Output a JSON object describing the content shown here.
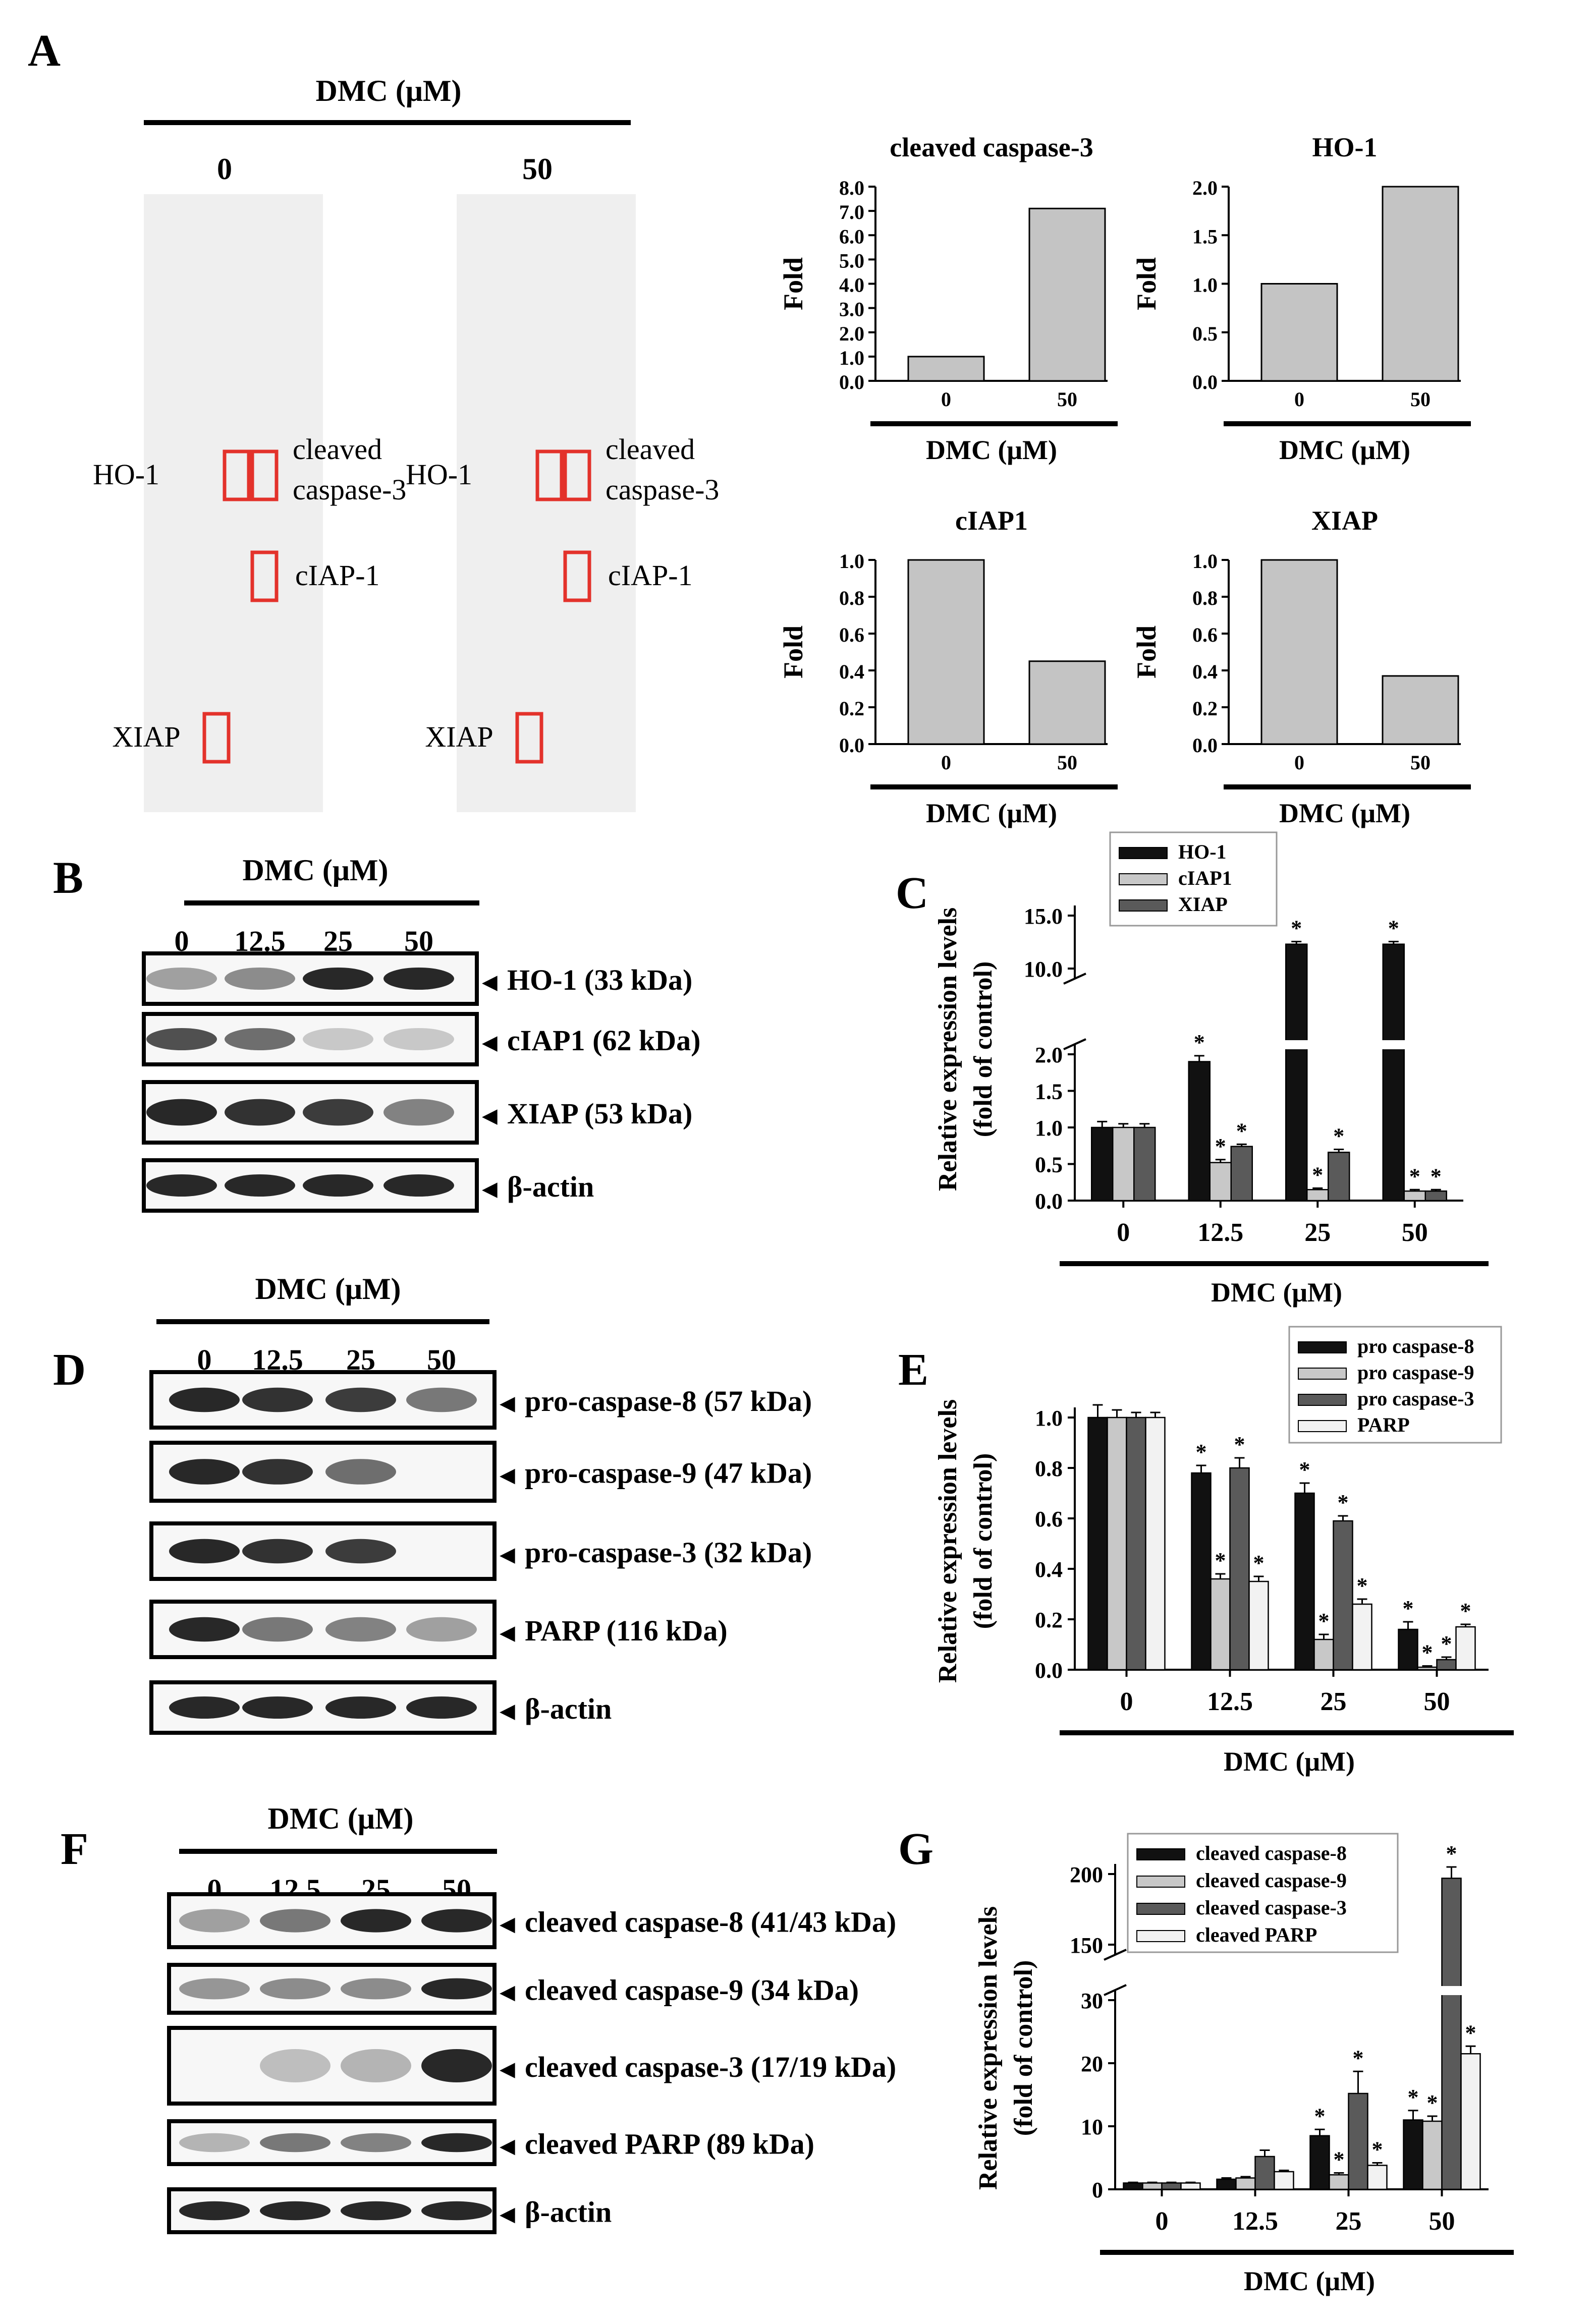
{
  "panel_labels": {
    "A": "A",
    "B": "B",
    "C": "C",
    "D": "D",
    "E": "E",
    "F": "F",
    "G": "G"
  },
  "treatment_header": "DMC (μM)",
  "panel_a": {
    "array_doses": [
      "0",
      "50"
    ],
    "array_labels": {
      "ho1": "HO-1",
      "cleaved_line1": "cleaved",
      "cleaved_line2": "caspase-3",
      "ciap": "cIAP-1",
      "xiap": "XIAP"
    }
  },
  "panel_b": {
    "doses": [
      "0",
      "12.5",
      "25",
      "50"
    ],
    "bands": [
      "HO-1 (33 kDa)",
      "cIAP1 (62 kDa)",
      "XIAP (53 kDa)",
      "β-actin"
    ]
  },
  "panel_d": {
    "doses": [
      "0",
      "12.5",
      "25",
      "50"
    ],
    "bands": [
      "pro-caspase-8 (57 kDa)",
      "pro-caspase-9 (47 kDa)",
      "pro-caspase-3 (32 kDa)",
      "PARP (116 kDa)",
      "β-actin"
    ]
  },
  "panel_f": {
    "doses": [
      "0",
      "12.5",
      "25",
      "50"
    ],
    "bands": [
      "cleaved caspase-8 (41/43 kDa)",
      "cleaved caspase-9 (34 kDa)",
      "cleaved caspase-3 (17/19 kDa)",
      "cleaved PARP (89 kDa)",
      "β-actin"
    ]
  },
  "colors": {
    "black_bar": "#111111",
    "light_gray_bar": "#c8c8c8",
    "dark_gray_bar": "#5a5a5a",
    "white_bar": "#f2f2f2",
    "array_bar": "#c4c4c4",
    "highlight_box": "#e3322b"
  },
  "chart_data": [
    {
      "id": "A1",
      "type": "bar",
      "title": "cleaved caspase-3",
      "categories": [
        "0",
        "50"
      ],
      "values": [
        1.0,
        7.1
      ],
      "ylabel": "Fold",
      "xlabel": "DMC (μM)",
      "ylim": [
        0,
        8.0
      ],
      "yticks": [
        "0.0",
        "1.0",
        "2.0",
        "3.0",
        "4.0",
        "5.0",
        "6.0",
        "7.0",
        "8.0"
      ]
    },
    {
      "id": "A2",
      "type": "bar",
      "title": "HO-1",
      "categories": [
        "0",
        "50"
      ],
      "values": [
        1.0,
        2.0
      ],
      "ylabel": "Fold",
      "xlabel": "DMC (μM)",
      "ylim": [
        0,
        2.0
      ],
      "yticks": [
        "0.0",
        "0.5",
        "1.0",
        "1.5",
        "2.0"
      ]
    },
    {
      "id": "A3",
      "type": "bar",
      "title": "cIAP1",
      "categories": [
        "0",
        "50"
      ],
      "values": [
        1.0,
        0.45
      ],
      "ylabel": "Fold",
      "xlabel": "DMC (μM)",
      "ylim": [
        0,
        1.0
      ],
      "yticks": [
        "0.0",
        "0.2",
        "0.4",
        "0.6",
        "0.8",
        "1.0"
      ]
    },
    {
      "id": "A4",
      "type": "bar",
      "title": "XIAP",
      "categories": [
        "0",
        "50"
      ],
      "values": [
        1.0,
        0.37
      ],
      "ylabel": "Fold",
      "xlabel": "DMC (μM)",
      "ylim": [
        0,
        1.0
      ],
      "yticks": [
        "0.0",
        "0.2",
        "0.4",
        "0.6",
        "0.8",
        "1.0"
      ]
    },
    {
      "id": "C",
      "type": "bar",
      "categories": [
        "0",
        "12.5",
        "25",
        "50"
      ],
      "ylabel": [
        "Relative expression levels",
        "(fold of control)"
      ],
      "xlabel": "DMC (μM)",
      "axis_break": {
        "lower": [
          0,
          2.0
        ],
        "upper": [
          10.0,
          15.0
        ]
      },
      "yticks_lower": [
        "0.0",
        "0.5",
        "1.0",
        "1.5",
        "2.0"
      ],
      "yticks_upper": [
        "10.0",
        "15.0"
      ],
      "legend_position": "top",
      "series": [
        {
          "name": "HO-1",
          "values": [
            1.0,
            1.9,
            12.3,
            12.3
          ],
          "errors": [
            0.08,
            0.08,
            0.25,
            0.25
          ],
          "significant": [
            false,
            true,
            true,
            true
          ]
        },
        {
          "name": "cIAP1",
          "values": [
            1.0,
            0.52,
            0.15,
            0.13
          ],
          "errors": [
            0.05,
            0.04,
            0.02,
            0.02
          ],
          "significant": [
            false,
            true,
            true,
            true
          ]
        },
        {
          "name": "XIAP",
          "values": [
            1.0,
            0.74,
            0.66,
            0.13
          ],
          "errors": [
            0.05,
            0.03,
            0.04,
            0.02
          ],
          "significant": [
            false,
            true,
            true,
            true
          ]
        }
      ]
    },
    {
      "id": "E",
      "type": "bar",
      "categories": [
        "0",
        "12.5",
        "25",
        "50"
      ],
      "ylabel": [
        "Relative expression levels",
        "(fold of control)"
      ],
      "xlabel": "DMC (μM)",
      "ylim": [
        0,
        1.0
      ],
      "yticks": [
        "0.0",
        "0.2",
        "0.4",
        "0.6",
        "0.8",
        "1.0"
      ],
      "legend_position": "top-right",
      "series": [
        {
          "name": "pro caspase-8",
          "values": [
            1.0,
            0.78,
            0.7,
            0.16
          ],
          "errors": [
            0.05,
            0.03,
            0.04,
            0.03
          ],
          "significant": [
            false,
            true,
            true,
            true
          ]
        },
        {
          "name": "pro caspase-9",
          "values": [
            1.0,
            0.36,
            0.12,
            0.01
          ],
          "errors": [
            0.03,
            0.02,
            0.02,
            0.005
          ],
          "significant": [
            false,
            true,
            true,
            true
          ]
        },
        {
          "name": "pro caspase-3",
          "values": [
            1.0,
            0.8,
            0.59,
            0.04
          ],
          "errors": [
            0.02,
            0.04,
            0.02,
            0.01
          ],
          "significant": [
            false,
            true,
            true,
            true
          ]
        },
        {
          "name": "PARP",
          "values": [
            1.0,
            0.35,
            0.26,
            0.17
          ],
          "errors": [
            0.02,
            0.02,
            0.02,
            0.01
          ],
          "significant": [
            false,
            true,
            true,
            true
          ]
        }
      ]
    },
    {
      "id": "G",
      "type": "bar",
      "categories": [
        "0",
        "12.5",
        "25",
        "50"
      ],
      "ylabel": [
        "Relative expression levels",
        "(fold of control)"
      ],
      "xlabel": "DMC (μM)",
      "axis_break": {
        "lower": [
          0,
          30
        ],
        "upper": [
          150,
          200
        ]
      },
      "yticks_lower": [
        "0",
        "10",
        "20",
        "30"
      ],
      "yticks_upper": [
        "150",
        "200"
      ],
      "legend_position": "top",
      "series": [
        {
          "name": "cleaved caspase-8",
          "values": [
            1.0,
            1.6,
            8.5,
            11.0
          ],
          "errors": [
            0.1,
            0.2,
            1.0,
            1.5
          ],
          "significant": [
            false,
            false,
            true,
            true
          ]
        },
        {
          "name": "cleaved caspase-9",
          "values": [
            1.0,
            1.8,
            2.3,
            10.8
          ],
          "errors": [
            0.1,
            0.2,
            0.3,
            0.8
          ],
          "significant": [
            false,
            false,
            true,
            true
          ]
        },
        {
          "name": "cleaved caspase-3",
          "values": [
            1.0,
            5.2,
            15.2,
            197
          ],
          "errors": [
            0.1,
            1.0,
            3.5,
            8.0
          ],
          "significant": [
            false,
            false,
            true,
            true
          ]
        },
        {
          "name": "cleaved PARP",
          "values": [
            1.0,
            2.8,
            3.8,
            21.5
          ],
          "errors": [
            0.1,
            0.2,
            0.4,
            1.2
          ],
          "significant": [
            false,
            false,
            true,
            true
          ]
        }
      ]
    }
  ]
}
